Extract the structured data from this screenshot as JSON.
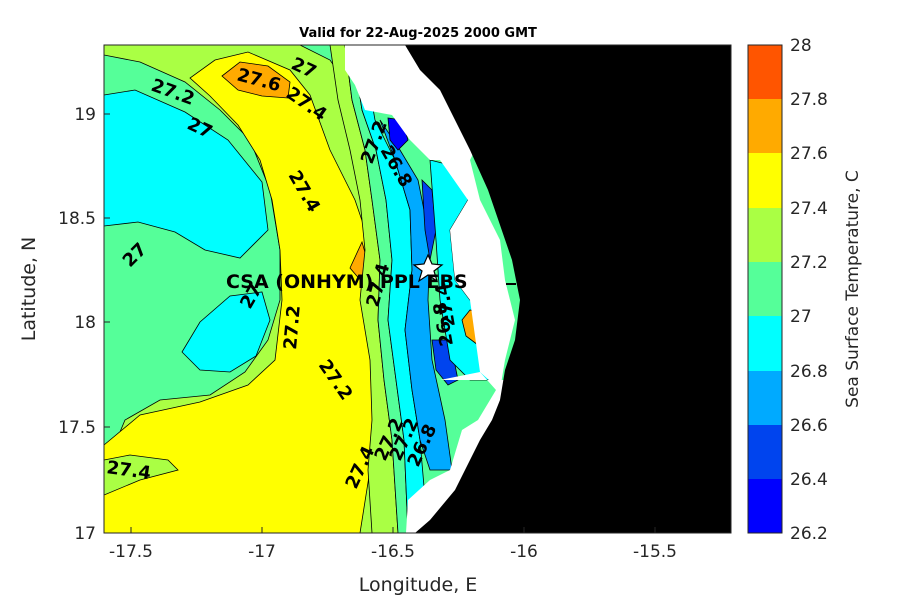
{
  "title": "Valid for 22-Aug-2025 2000 GMT",
  "xlabel": "Longitude, E",
  "ylabel": "Latitude, N",
  "colorbar_label": "Sea Surface Temperature, C",
  "x_ticks": [
    "-17.5",
    "-17",
    "-16.5",
    "-16",
    "-15.5"
  ],
  "y_ticks": [
    "19",
    "18.5",
    "18",
    "17.5",
    "17"
  ],
  "colorbar_ticks": [
    "28",
    "27.8",
    "27.6",
    "27.4",
    "27.2",
    "27",
    "26.8",
    "26.6",
    "26.4",
    "26.2"
  ],
  "colors": {
    "land": "#000000",
    "no_data": "#ffffff",
    "levels": {
      "26.2-26.4": "#0000ff",
      "26.4-26.6": "#0044ee",
      "26.6-26.8": "#00aaff",
      "26.8-27.0": "#00ffff",
      "27.0-27.2": "#55ff99",
      "27.2-27.4": "#aaff44",
      "27.4-27.6": "#ffff00",
      "27.6-27.8": "#ffaa00",
      "27.8-28.0": "#ff5500"
    }
  },
  "site": {
    "label": "CSA (ONHYM) PPL EBS",
    "lon": -16.36,
    "lat": 18.27,
    "marker": "star-icon"
  },
  "contour_labels": [
    "27.2",
    "27",
    "27.6",
    "27.4",
    "27",
    "27.4",
    "27.4",
    "26.8",
    "27.2",
    "27",
    "27",
    "27.2",
    "27.4",
    "26.8",
    "27.2",
    "27.2",
    "27.4",
    "27.2",
    "26.8",
    "27.4"
  ],
  "chart_data": {
    "type": "heatmap",
    "title": "Valid for 22-Aug-2025 2000 GMT",
    "xlabel": "Longitude, E",
    "ylabel": "Latitude, N",
    "xlim": [
      -17.6,
      -15.2
    ],
    "ylim": [
      17.0,
      19.35
    ],
    "colorbar": {
      "label": "Sea Surface Temperature, C",
      "range": [
        26.2,
        28.0
      ],
      "step": 0.2
    },
    "temperature_range_c": [
      26.2,
      27.8
    ],
    "features": [
      "coastline at about -16.1 to -16.0 E",
      "cool upwelling band near shore (26.2-26.8 C)",
      "warm band 27.4-27.6 C near -16.6 E",
      "cooler offshore pool 26.8-27.0 C near -17.3 E"
    ]
  }
}
